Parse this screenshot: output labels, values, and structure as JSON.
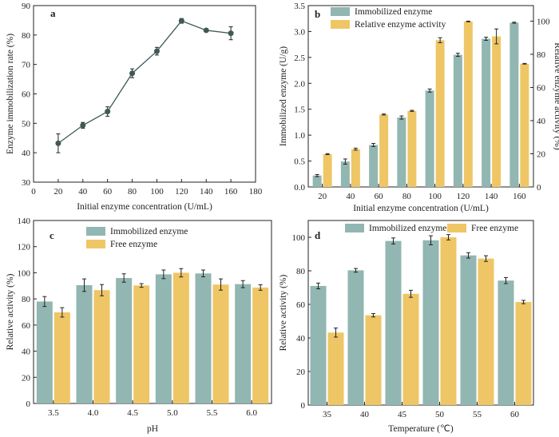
{
  "colors": {
    "immobilized": "#92b6b1",
    "free": "#efc665",
    "line": "#3d5a56",
    "axis": "#222222"
  },
  "chart_data": [
    {
      "type": "line",
      "letter": "a",
      "xlabel": "Initial enzyme concentration (U/mL)",
      "ylabel": "Enzyme immobilization rate (%)",
      "xlim": [
        0,
        180
      ],
      "ylim": [
        30,
        90
      ],
      "xticks": [
        0,
        20,
        40,
        60,
        80,
        100,
        120,
        140,
        160,
        180
      ],
      "yticks": [
        30,
        40,
        50,
        60,
        70,
        80,
        90
      ],
      "x": [
        20,
        40,
        60,
        80,
        100,
        120,
        140,
        160
      ],
      "y": [
        43.2,
        49.3,
        54.0,
        67.0,
        74.5,
        84.8,
        81.6,
        80.6
      ],
      "err": [
        3.2,
        1.0,
        1.6,
        1.5,
        1.3,
        0.8,
        0.5,
        2.2
      ]
    },
    {
      "type": "bar",
      "letter": "b",
      "xlabel": "Initial enzyme concentration (U/mL)",
      "ylabel": "Immobilized enzyme (U/g)",
      "ylabel_right": "Relative enzyme activity (%)",
      "categories": [
        "20",
        "40",
        "60",
        "80",
        "100",
        "120",
        "140",
        "160"
      ],
      "ylim": [
        0,
        3.5
      ],
      "yticks": [
        0.0,
        0.5,
        1.0,
        1.5,
        2.0,
        2.5,
        3.0,
        3.5
      ],
      "ylim_right": [
        0,
        109.375
      ],
      "yticks_right": [
        0,
        20,
        40,
        60,
        80,
        100
      ],
      "series": [
        {
          "name": "Immobilized enzyme",
          "axis": "left",
          "values": [
            0.22,
            0.49,
            0.81,
            1.34,
            1.86,
            2.55,
            2.86,
            3.17
          ],
          "err": [
            0.02,
            0.05,
            0.03,
            0.03,
            0.03,
            0.03,
            0.03,
            0.01
          ]
        },
        {
          "name": "Relative enzyme activity",
          "axis": "right",
          "values": [
            19.8,
            22.8,
            43.7,
            45.9,
            88.5,
            99.8,
            90.8,
            74.3
          ],
          "err": [
            0.3,
            0.6,
            0.3,
            0.3,
            1.5,
            0.2,
            4.5,
            0.2
          ]
        }
      ]
    },
    {
      "type": "bar",
      "letter": "c",
      "xlabel": "pH",
      "ylabel": "Relative activity (%)",
      "categories": [
        "3.5",
        "4.0",
        "4.5",
        "5.0",
        "5.5",
        "6.0"
      ],
      "ylim": [
        0,
        140
      ],
      "yticks": [
        0,
        20,
        40,
        60,
        80,
        100,
        120,
        140
      ],
      "series": [
        {
          "name": "Immobilized enzyme",
          "values": [
            78.0,
            90.5,
            96.0,
            98.8,
            99.5,
            91.3
          ],
          "err": [
            3.8,
            4.8,
            3.2,
            3.3,
            2.6,
            2.7
          ]
        },
        {
          "name": "Free enzyme",
          "values": [
            69.7,
            86.7,
            90.3,
            100.0,
            91.0,
            88.7
          ],
          "err": [
            3.6,
            4.3,
            1.4,
            3.2,
            4.3,
            2.1
          ]
        }
      ]
    },
    {
      "type": "bar",
      "letter": "d",
      "xlabel": "Temperature (℃)",
      "ylabel": "Relative activity (%)",
      "categories": [
        "35",
        "40",
        "45",
        "50",
        "55",
        "60"
      ],
      "ylim": [
        0,
        110
      ],
      "yticks": [
        0,
        20,
        40,
        60,
        80,
        100
      ],
      "series": [
        {
          "name": "Immobilized enzyme",
          "values": [
            71.0,
            80.3,
            97.8,
            98.2,
            89.2,
            74.2
          ],
          "err": [
            1.7,
            1.1,
            1.8,
            2.7,
            1.6,
            1.8
          ]
        },
        {
          "name": "Free enzyme",
          "values": [
            43.2,
            53.5,
            66.3,
            100.0,
            87.3,
            61.4
          ],
          "err": [
            2.7,
            1.0,
            2.1,
            1.6,
            1.7,
            1.0
          ]
        }
      ]
    }
  ]
}
